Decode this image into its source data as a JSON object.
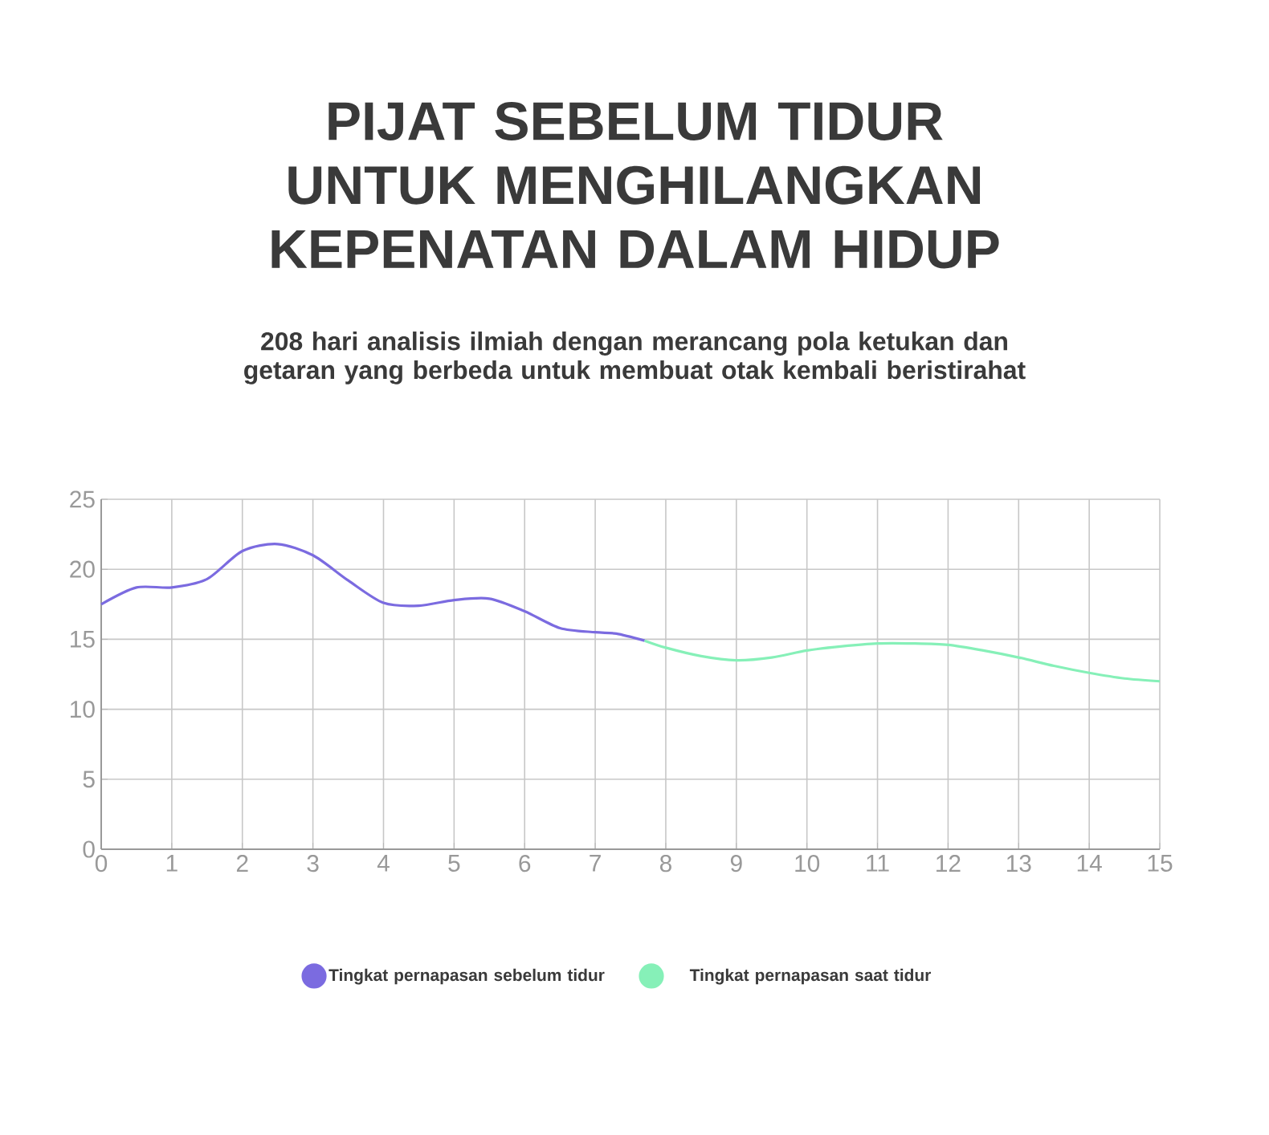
{
  "chart_data": {
    "type": "line",
    "title": "PIJAT SEBELUM TIDUR UNTUK MENGHILANGKAN KEPENATAN DALAM HIDUP",
    "subtitle": "208 hari analisis ilmiah dengan merancang pola ketukan dan getaran yang berbeda untuk membuat otak kembali beristirahat",
    "xlim": [
      0,
      15
    ],
    "xticks": [
      0,
      1,
      2,
      3,
      4,
      5,
      6,
      7,
      8,
      9,
      10,
      11,
      12,
      13,
      14,
      15
    ],
    "ylim": [
      0,
      25
    ],
    "yticks": [
      0,
      5,
      10,
      15,
      20,
      25
    ],
    "grid": true,
    "legend": "bottom",
    "marker": "none",
    "line_style": "solid",
    "series": [
      {
        "name": "Tingkat pernapasan sebelum tidur",
        "color": "#7b6be0",
        "x": [
          0,
          0.5,
          1,
          1.5,
          2,
          2.5,
          3,
          3.5,
          4,
          4.5,
          5,
          5.5,
          6,
          6.5,
          7,
          7.3,
          7.7
        ],
        "values": [
          17.5,
          18.7,
          18.7,
          19.3,
          21.3,
          21.8,
          21,
          19.2,
          17.6,
          17.4,
          17.8,
          17.9,
          17,
          15.8,
          15.5,
          15.4,
          14.9
        ]
      },
      {
        "name": "Tingkat pernapasan saat tidur",
        "color": "#86f0b8",
        "x": [
          7.7,
          8,
          8.5,
          9,
          9.5,
          10,
          10.5,
          11,
          11.5,
          12,
          12.5,
          13,
          13.5,
          14,
          14.5,
          15
        ],
        "values": [
          14.9,
          14.4,
          13.8,
          13.5,
          13.7,
          14.2,
          14.5,
          14.7,
          14.7,
          14.6,
          14.2,
          13.7,
          13.1,
          12.6,
          12.2,
          12
        ]
      }
    ]
  }
}
